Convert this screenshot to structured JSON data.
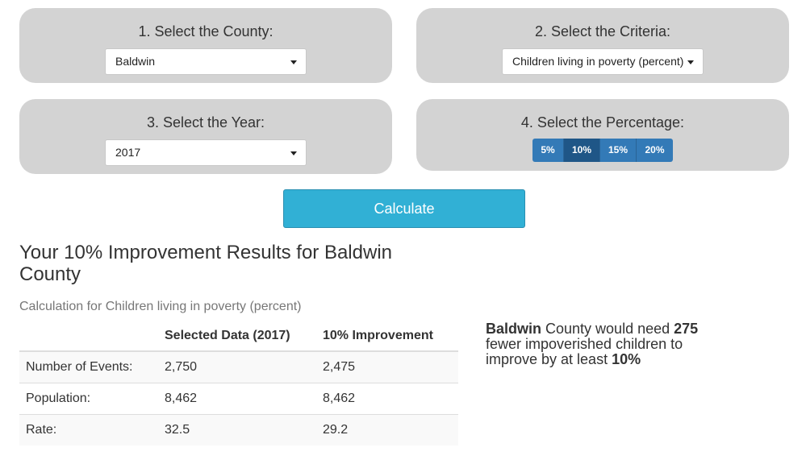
{
  "county_panel": {
    "title": "1. Select the County:",
    "selected": "Baldwin"
  },
  "criteria_panel": {
    "title": "2. Select the Criteria:",
    "selected": "Children living in poverty (percent)"
  },
  "year_panel": {
    "title": "3. Select the Year:",
    "selected": "2017"
  },
  "percentage_panel": {
    "title": "4. Select the Percentage:",
    "options": [
      "5%",
      "10%",
      "15%",
      "20%"
    ],
    "active": "10%"
  },
  "calculate_label": "Calculate",
  "results": {
    "title": "Your 10% Improvement Results for Baldwin County",
    "calculation_label": "Calculation for Children living in poverty (percent)",
    "headers": [
      "",
      "Selected Data (2017)",
      "10% Improvement"
    ],
    "rows": [
      {
        "label": "Number of Events:",
        "selected": "2,750",
        "improved": "2,475"
      },
      {
        "label": "Population:",
        "selected": "8,462",
        "improved": "8,462"
      },
      {
        "label": "Rate:",
        "selected": "32.5",
        "improved": "29.2"
      }
    ]
  },
  "summary": {
    "county": "Baldwin",
    "text1": " County would need ",
    "count": "275",
    "text2": " fewer impoverished children to improve by at least ",
    "percent": "10%"
  },
  "colors": {
    "panel_bg": "#d3d3d3",
    "pct_button": "#337ab7",
    "pct_button_active": "#1f5687",
    "calculate_button": "#31b0d5"
  }
}
